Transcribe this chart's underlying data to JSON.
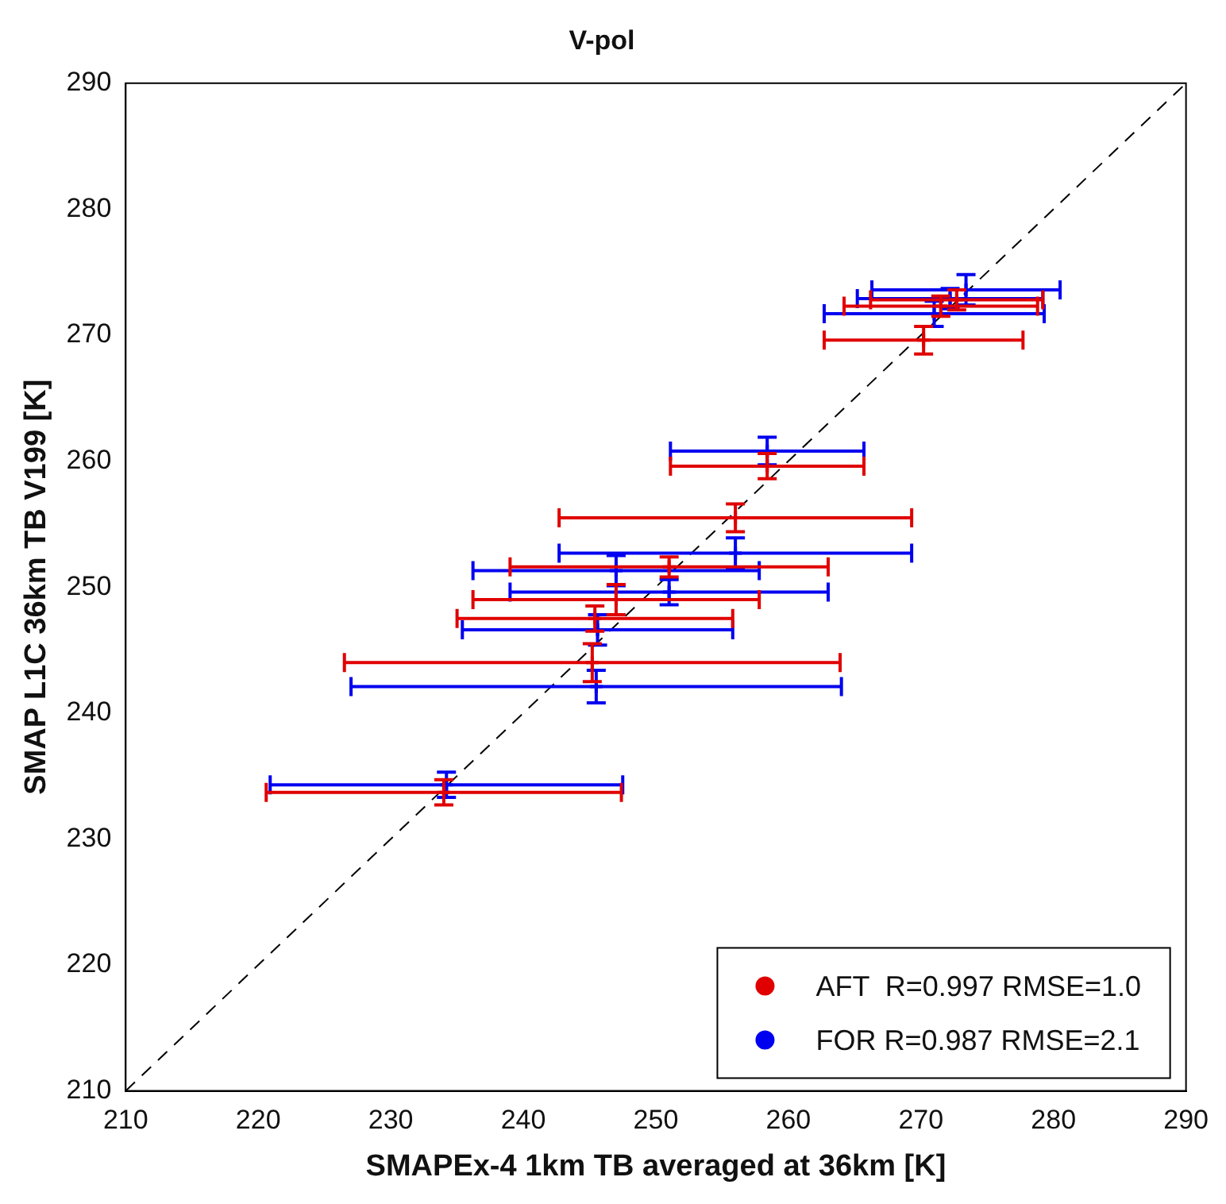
{
  "chart_data": {
    "type": "scatter",
    "title": "V-pol",
    "xlabel": "SMAPEx-4 1km TB averaged at 36km [K]",
    "ylabel": "SMAP L1C 36km TB V199 [K]",
    "xlim": [
      210,
      290
    ],
    "xticks": [
      210,
      220,
      230,
      240,
      250,
      260,
      270,
      280,
      290
    ],
    "ylim": [
      210,
      290
    ],
    "yticks": [
      210,
      220,
      230,
      240,
      250,
      260,
      270,
      280,
      290
    ],
    "grid": false,
    "legend": "bottom right",
    "series": [
      {
        "name": "AFT  R=0.997 RMSE=1.0",
        "color": "#e00000",
        "marker": "cross",
        "x": [
          234,
          245.2,
          245.4,
          247,
          251,
          256,
          258.4,
          270.2,
          271.5,
          272.7
        ],
        "values": [
          233.7,
          244,
          247.5,
          249,
          251.6,
          255.5,
          259.6,
          269.6,
          272.3,
          272.8
        ],
        "xerrors": [
          13.4,
          18.7,
          10.4,
          10.8,
          12,
          13.3,
          7.3,
          7.5,
          7.3,
          6.5
        ],
        "errors": [
          1,
          1.5,
          1,
          1.2,
          0.8,
          1.1,
          1,
          1.1,
          0.8,
          0.8
        ]
      },
      {
        "name": "FOR R=0.987 RMSE=2.1",
        "color": "#0000f0",
        "marker": "cross",
        "x": [
          234.2,
          245.5,
          245.6,
          247,
          251,
          256,
          258.4,
          271,
          272.2,
          273.4
        ],
        "values": [
          234.3,
          242.1,
          246.6,
          251.3,
          249.6,
          252.7,
          260.8,
          271.7,
          272.9,
          273.6
        ],
        "xerrors": [
          13.3,
          18.5,
          10.2,
          10.8,
          12,
          13.3,
          7.3,
          8.3,
          7,
          7.1
        ],
        "errors": [
          1,
          1.3,
          1.2,
          1.2,
          1,
          1.2,
          1.1,
          1,
          0.8,
          1.2
        ]
      },
      {
        "type": "line",
        "color": "#000000",
        "line_style": "dashed",
        "marker": "none",
        "x": [
          210,
          290
        ],
        "values": [
          210,
          290
        ]
      }
    ]
  }
}
